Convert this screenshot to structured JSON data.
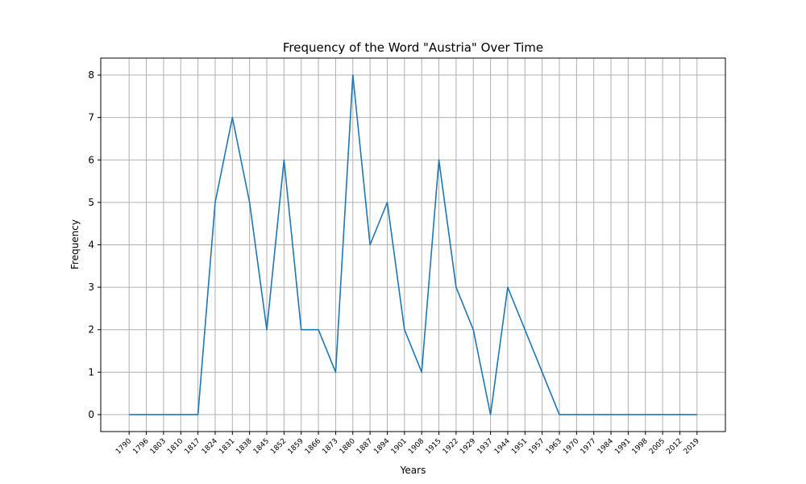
{
  "chart_data": {
    "type": "line",
    "title": "Frequency of the Word \"Austria\" Over Time",
    "xlabel": "Years",
    "ylabel": "Frequency",
    "x": [
      1790,
      1796,
      1803,
      1810,
      1817,
      1824,
      1831,
      1838,
      1845,
      1852,
      1859,
      1866,
      1873,
      1880,
      1887,
      1894,
      1901,
      1908,
      1915,
      1922,
      1929,
      1937,
      1944,
      1951,
      1957,
      1963,
      1970,
      1977,
      1984,
      1991,
      1998,
      2005,
      2012,
      2019
    ],
    "x_tick_labels": [
      "1790",
      "1796",
      "1803",
      "1810",
      "1817",
      "1824",
      "1831",
      "1838",
      "1845",
      "1852",
      "1859",
      "1866",
      "1873",
      "1880",
      "1887",
      "1894",
      "1901",
      "1908",
      "1915",
      "1922",
      "1929",
      "1937",
      "1944",
      "1951",
      "1957",
      "1963",
      "1970",
      "1977",
      "1984",
      "1991",
      "1998",
      "2005",
      "2012",
      "2019"
    ],
    "series": [
      {
        "values": [
          0,
          0,
          0,
          0,
          0,
          5,
          7,
          5,
          2,
          6,
          2,
          2,
          1,
          8,
          4,
          5,
          2,
          1,
          6,
          3,
          2,
          0,
          3,
          2,
          1,
          0,
          0,
          0,
          0,
          0,
          0,
          0,
          0,
          0
        ],
        "color": "#1f77b4"
      }
    ],
    "ylim": [
      -0.4,
      8.4
    ],
    "y_ticks": [
      0,
      1,
      2,
      3,
      4,
      5,
      6,
      7,
      8
    ],
    "x_axis_kind": "categorical-evenly-spaced",
    "x_tick_rotation": "45 degrees",
    "grid": true,
    "legend": "none"
  }
}
